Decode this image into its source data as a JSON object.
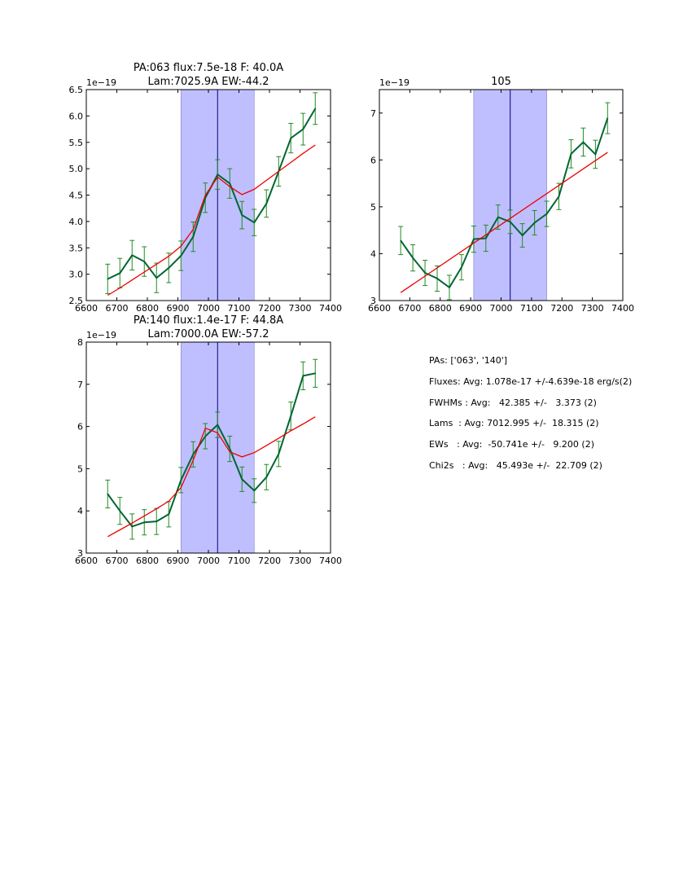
{
  "chart_data": [
    {
      "type": "line",
      "title_lines": [
        "PA:063 flux:7.5e-18 F: 40.0A",
        "Lam:7025.9A EW:-44.2"
      ],
      "offset_label": "1e−19",
      "xlim": [
        6600,
        7400
      ],
      "ylim": [
        2.5,
        6.5
      ],
      "xticks": [
        6600,
        6700,
        6800,
        6900,
        7000,
        7100,
        7200,
        7300,
        7400
      ],
      "yticks": [
        2.5,
        3.0,
        3.5,
        4.0,
        4.5,
        5.0,
        5.5,
        6.0,
        6.5
      ],
      "ytick_labels": [
        "2.5",
        "3.0",
        "3.5",
        "4.0",
        "4.5",
        "5.0",
        "5.5",
        "6.0",
        "6.5"
      ],
      "shaded_span": [
        6910,
        7150
      ],
      "vline": 7030,
      "colors": {
        "data": "#006633",
        "errorbar": "#228b22",
        "model": "#ee0000",
        "span": "#bfbfff",
        "vline": "#000080"
      },
      "series": [
        {
          "role": "data",
          "x": [
            6670,
            6710,
            6750,
            6790,
            6830,
            6870,
            6910,
            6950,
            6990,
            7030,
            7070,
            7110,
            7150,
            7190,
            7230,
            7270,
            7310,
            7350
          ],
          "y": [
            2.91,
            3.02,
            3.36,
            3.24,
            2.93,
            3.12,
            3.35,
            3.71,
            4.45,
            4.89,
            4.72,
            4.12,
            3.98,
            4.34,
            4.95,
            5.58,
            5.75,
            6.14
          ],
          "yerr": [
            0.28,
            0.28,
            0.28,
            0.28,
            0.28,
            0.28,
            0.28,
            0.28,
            0.28,
            0.28,
            0.28,
            0.26,
            0.25,
            0.26,
            0.28,
            0.28,
            0.3,
            0.3
          ]
        },
        {
          "role": "model",
          "x": [
            6670,
            6710,
            6750,
            6790,
            6830,
            6870,
            6910,
            6950,
            6990,
            7030,
            7070,
            7110,
            7150,
            7190,
            7230,
            7270,
            7310,
            7350
          ],
          "y": [
            2.6,
            2.74,
            2.89,
            3.04,
            3.19,
            3.34,
            3.53,
            3.85,
            4.5,
            4.84,
            4.66,
            4.51,
            4.61,
            4.78,
            4.95,
            5.12,
            5.29,
            5.45
          ]
        }
      ]
    },
    {
      "type": "line",
      "title_lines": [
        "105"
      ],
      "offset_label": "1e−19",
      "xlim": [
        6600,
        7400
      ],
      "ylim": [
        3,
        7.5
      ],
      "xticks": [
        6600,
        6700,
        6800,
        6900,
        7000,
        7100,
        7200,
        7300,
        7400
      ],
      "yticks": [
        3,
        4,
        5,
        6,
        7
      ],
      "ytick_labels": [
        "3",
        "4",
        "5",
        "6",
        "7"
      ],
      "shaded_span": [
        6910,
        7150
      ],
      "vline": 7030,
      "colors": {
        "data": "#006633",
        "errorbar": "#228b22",
        "model": "#ee0000",
        "span": "#bfbfff",
        "vline": "#000080"
      },
      "series": [
        {
          "role": "data",
          "x": [
            6670,
            6710,
            6750,
            6790,
            6830,
            6870,
            6910,
            6950,
            6990,
            7030,
            7070,
            7110,
            7150,
            7190,
            7230,
            7270,
            7310,
            7350
          ],
          "y": [
            4.28,
            3.91,
            3.59,
            3.47,
            3.28,
            3.71,
            4.31,
            4.33,
            4.78,
            4.68,
            4.39,
            4.66,
            4.85,
            5.22,
            6.13,
            6.38,
            6.12,
            6.89
          ],
          "yerr": [
            0.3,
            0.28,
            0.27,
            0.27,
            0.26,
            0.27,
            0.28,
            0.28,
            0.26,
            0.25,
            0.25,
            0.26,
            0.27,
            0.28,
            0.3,
            0.3,
            0.3,
            0.33
          ]
        },
        {
          "role": "model",
          "x": [
            6670,
            7350
          ],
          "y": [
            3.17,
            6.16
          ]
        }
      ]
    },
    {
      "type": "line",
      "title_lines": [
        "PA:140 flux:1.4e-17 F: 44.8A",
        "Lam:7000.0A EW:-57.2"
      ],
      "offset_label": "1e−19",
      "xlim": [
        6600,
        7400
      ],
      "ylim": [
        3,
        8
      ],
      "xticks": [
        6600,
        6700,
        6800,
        6900,
        7000,
        7100,
        7200,
        7300,
        7400
      ],
      "yticks": [
        3,
        4,
        5,
        6,
        7,
        8
      ],
      "ytick_labels": [
        "3",
        "4",
        "5",
        "6",
        "7",
        "8"
      ],
      "shaded_span": [
        6910,
        7150
      ],
      "vline": 7030,
      "colors": {
        "data": "#006633",
        "errorbar": "#228b22",
        "model": "#ee0000",
        "span": "#bfbfff",
        "vline": "#000080"
      },
      "series": [
        {
          "role": "data",
          "x": [
            6670,
            6710,
            6750,
            6790,
            6830,
            6870,
            6910,
            6950,
            6990,
            7030,
            7070,
            7110,
            7150,
            7190,
            7230,
            7270,
            7310,
            7350
          ],
          "y": [
            4.4,
            4.0,
            3.63,
            3.73,
            3.75,
            3.92,
            4.73,
            5.34,
            5.77,
            6.04,
            5.47,
            4.75,
            4.48,
            4.8,
            5.35,
            6.25,
            7.2,
            7.26
          ],
          "yerr": [
            0.33,
            0.32,
            0.3,
            0.3,
            0.31,
            0.3,
            0.3,
            0.3,
            0.3,
            0.3,
            0.3,
            0.29,
            0.28,
            0.3,
            0.3,
            0.33,
            0.33,
            0.33
          ]
        },
        {
          "role": "model",
          "x": [
            6670,
            6710,
            6750,
            6790,
            6830,
            6870,
            6910,
            6950,
            6990,
            7030,
            7070,
            7110,
            7150,
            7190,
            7230,
            7270,
            7310,
            7350
          ],
          "y": [
            3.39,
            3.55,
            3.71,
            3.88,
            4.05,
            4.23,
            4.55,
            5.2,
            5.96,
            5.85,
            5.4,
            5.28,
            5.38,
            5.55,
            5.72,
            5.9,
            6.06,
            6.23
          ]
        }
      ]
    }
  ],
  "summary": {
    "lines": [
      "PAs: ['063', '140']",
      "Fluxes: Avg: 1.078e-17 +/-4.639e-18 erg/s(2)",
      "FWHMs : Avg:   42.385 +/-   3.373 (2)",
      "Lams  : Avg: 7012.995 +/-  18.315 (2)",
      "EWs   : Avg:  -50.741e +/-   9.200 (2)",
      "Chi2s   : Avg:   45.493e +/-  22.709 (2)"
    ]
  }
}
